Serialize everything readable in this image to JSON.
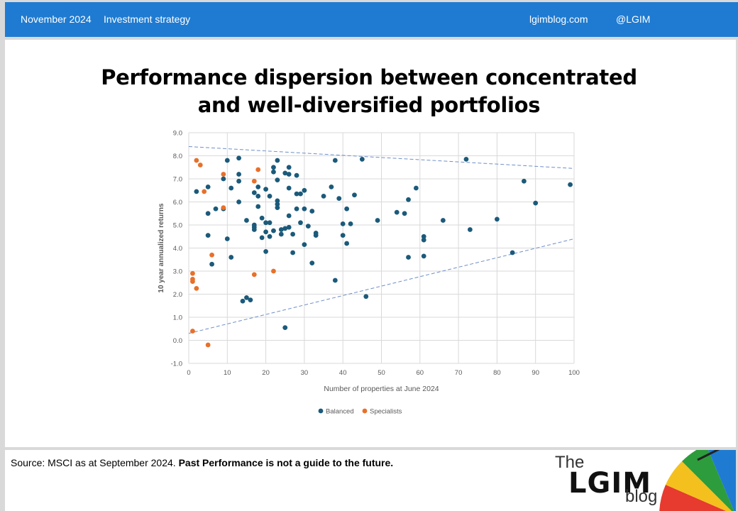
{
  "header": {
    "date": "November 2024",
    "section": "Investment strategy",
    "site": "lgimblog.com",
    "handle": "@LGIM"
  },
  "title_line1": "Performance dispersion between concentrated",
  "title_line2": "and well-diversified portfolios",
  "chart_data": {
    "type": "scatter",
    "xlabel": "Number of properties at June 2024",
    "ylabel": "10 year annualized returns",
    "xlim": [
      0,
      100
    ],
    "ylim": [
      -1,
      9
    ],
    "xticks": [
      "0",
      "10",
      "20",
      "30",
      "40",
      "50",
      "60",
      "70",
      "80",
      "90",
      "100"
    ],
    "yticks": [
      "-1.0",
      "0.0",
      "1.0",
      "2.0",
      "3.0",
      "4.0",
      "5.0",
      "6.0",
      "7.0",
      "8.0",
      "9.0"
    ],
    "grid": true,
    "legend_position": "bottom",
    "series": [
      {
        "name": "Balanced",
        "color": "#1b5a7a",
        "points": [
          [
            2,
            6.45
          ],
          [
            5,
            6.65
          ],
          [
            5,
            5.5
          ],
          [
            5,
            4.55
          ],
          [
            6,
            3.3
          ],
          [
            7,
            5.7
          ],
          [
            9,
            7.0
          ],
          [
            9,
            5.7
          ],
          [
            10,
            7.8
          ],
          [
            10,
            4.4
          ],
          [
            11,
            6.6
          ],
          [
            11,
            3.6
          ],
          [
            13,
            7.9
          ],
          [
            13,
            7.2
          ],
          [
            13,
            6.9
          ],
          [
            13,
            6.0
          ],
          [
            14,
            1.7
          ],
          [
            15,
            1.85
          ],
          [
            15,
            5.2
          ],
          [
            16,
            1.75
          ],
          [
            17,
            6.4
          ],
          [
            17,
            5.0
          ],
          [
            17,
            4.9
          ],
          [
            17,
            4.8
          ],
          [
            18,
            6.65
          ],
          [
            18,
            6.25
          ],
          [
            18,
            5.8
          ],
          [
            19,
            5.3
          ],
          [
            19,
            4.45
          ],
          [
            20,
            6.55
          ],
          [
            20,
            5.1
          ],
          [
            20,
            4.7
          ],
          [
            20,
            3.85
          ],
          [
            21,
            6.25
          ],
          [
            21,
            5.1
          ],
          [
            21,
            4.5
          ],
          [
            22,
            7.5
          ],
          [
            22,
            7.3
          ],
          [
            22,
            4.75
          ],
          [
            23,
            7.8
          ],
          [
            23,
            6.95
          ],
          [
            23,
            6.05
          ],
          [
            23,
            5.9
          ],
          [
            23,
            5.75
          ],
          [
            24,
            4.8
          ],
          [
            24,
            4.6
          ],
          [
            25,
            7.25
          ],
          [
            25,
            4.85
          ],
          [
            25,
            0.55
          ],
          [
            26,
            7.5
          ],
          [
            26,
            7.2
          ],
          [
            26,
            6.6
          ],
          [
            26,
            5.4
          ],
          [
            26,
            4.9
          ],
          [
            27,
            4.6
          ],
          [
            27,
            3.8
          ],
          [
            28,
            7.15
          ],
          [
            28,
            6.35
          ],
          [
            28,
            5.7
          ],
          [
            29,
            6.35
          ],
          [
            29,
            5.1
          ],
          [
            30,
            6.5
          ],
          [
            30,
            5.7
          ],
          [
            30,
            4.15
          ],
          [
            31,
            4.95
          ],
          [
            32,
            5.6
          ],
          [
            32,
            3.35
          ],
          [
            33,
            4.65
          ],
          [
            33,
            4.55
          ],
          [
            35,
            6.25
          ],
          [
            37,
            6.65
          ],
          [
            38,
            7.8
          ],
          [
            38,
            2.6
          ],
          [
            39,
            6.15
          ],
          [
            40,
            5.05
          ],
          [
            40,
            4.55
          ],
          [
            41,
            5.7
          ],
          [
            41,
            4.2
          ],
          [
            42,
            5.05
          ],
          [
            43,
            6.3
          ],
          [
            45,
            7.85
          ],
          [
            46,
            1.9
          ],
          [
            49,
            5.2
          ],
          [
            54,
            5.55
          ],
          [
            56,
            5.5
          ],
          [
            57,
            6.1
          ],
          [
            57,
            3.6
          ],
          [
            59,
            6.6
          ],
          [
            61,
            4.5
          ],
          [
            61,
            4.35
          ],
          [
            61,
            3.65
          ],
          [
            66,
            5.2
          ],
          [
            72,
            7.85
          ],
          [
            73,
            4.8
          ],
          [
            80,
            5.25
          ],
          [
            84,
            3.8
          ],
          [
            87,
            6.9
          ],
          [
            90,
            5.95
          ],
          [
            99,
            6.75
          ]
        ]
      },
      {
        "name": "Specialists",
        "color": "#e8702a",
        "points": [
          [
            1,
            2.9
          ],
          [
            1,
            2.65
          ],
          [
            1,
            2.55
          ],
          [
            1,
            0.4
          ],
          [
            2,
            7.8
          ],
          [
            2,
            2.25
          ],
          [
            3,
            7.6
          ],
          [
            4,
            6.45
          ],
          [
            5,
            -0.2
          ],
          [
            6,
            3.7
          ],
          [
            9,
            7.2
          ],
          [
            9,
            5.75
          ],
          [
            17,
            6.9
          ],
          [
            17,
            2.85
          ],
          [
            18,
            7.4
          ],
          [
            22,
            3.0
          ]
        ]
      }
    ],
    "trendlines": [
      {
        "x": [
          0,
          100
        ],
        "y": [
          8.4,
          7.45
        ]
      },
      {
        "x": [
          0,
          100
        ],
        "y": [
          0.3,
          4.4
        ]
      }
    ]
  },
  "footer": {
    "source_text": "Source: MSCI as at September 2024.",
    "source_bold": "Past Performance is not a guide to the future."
  },
  "logo": {
    "the": "The",
    "name": "LGIM",
    "blog": "blog"
  }
}
